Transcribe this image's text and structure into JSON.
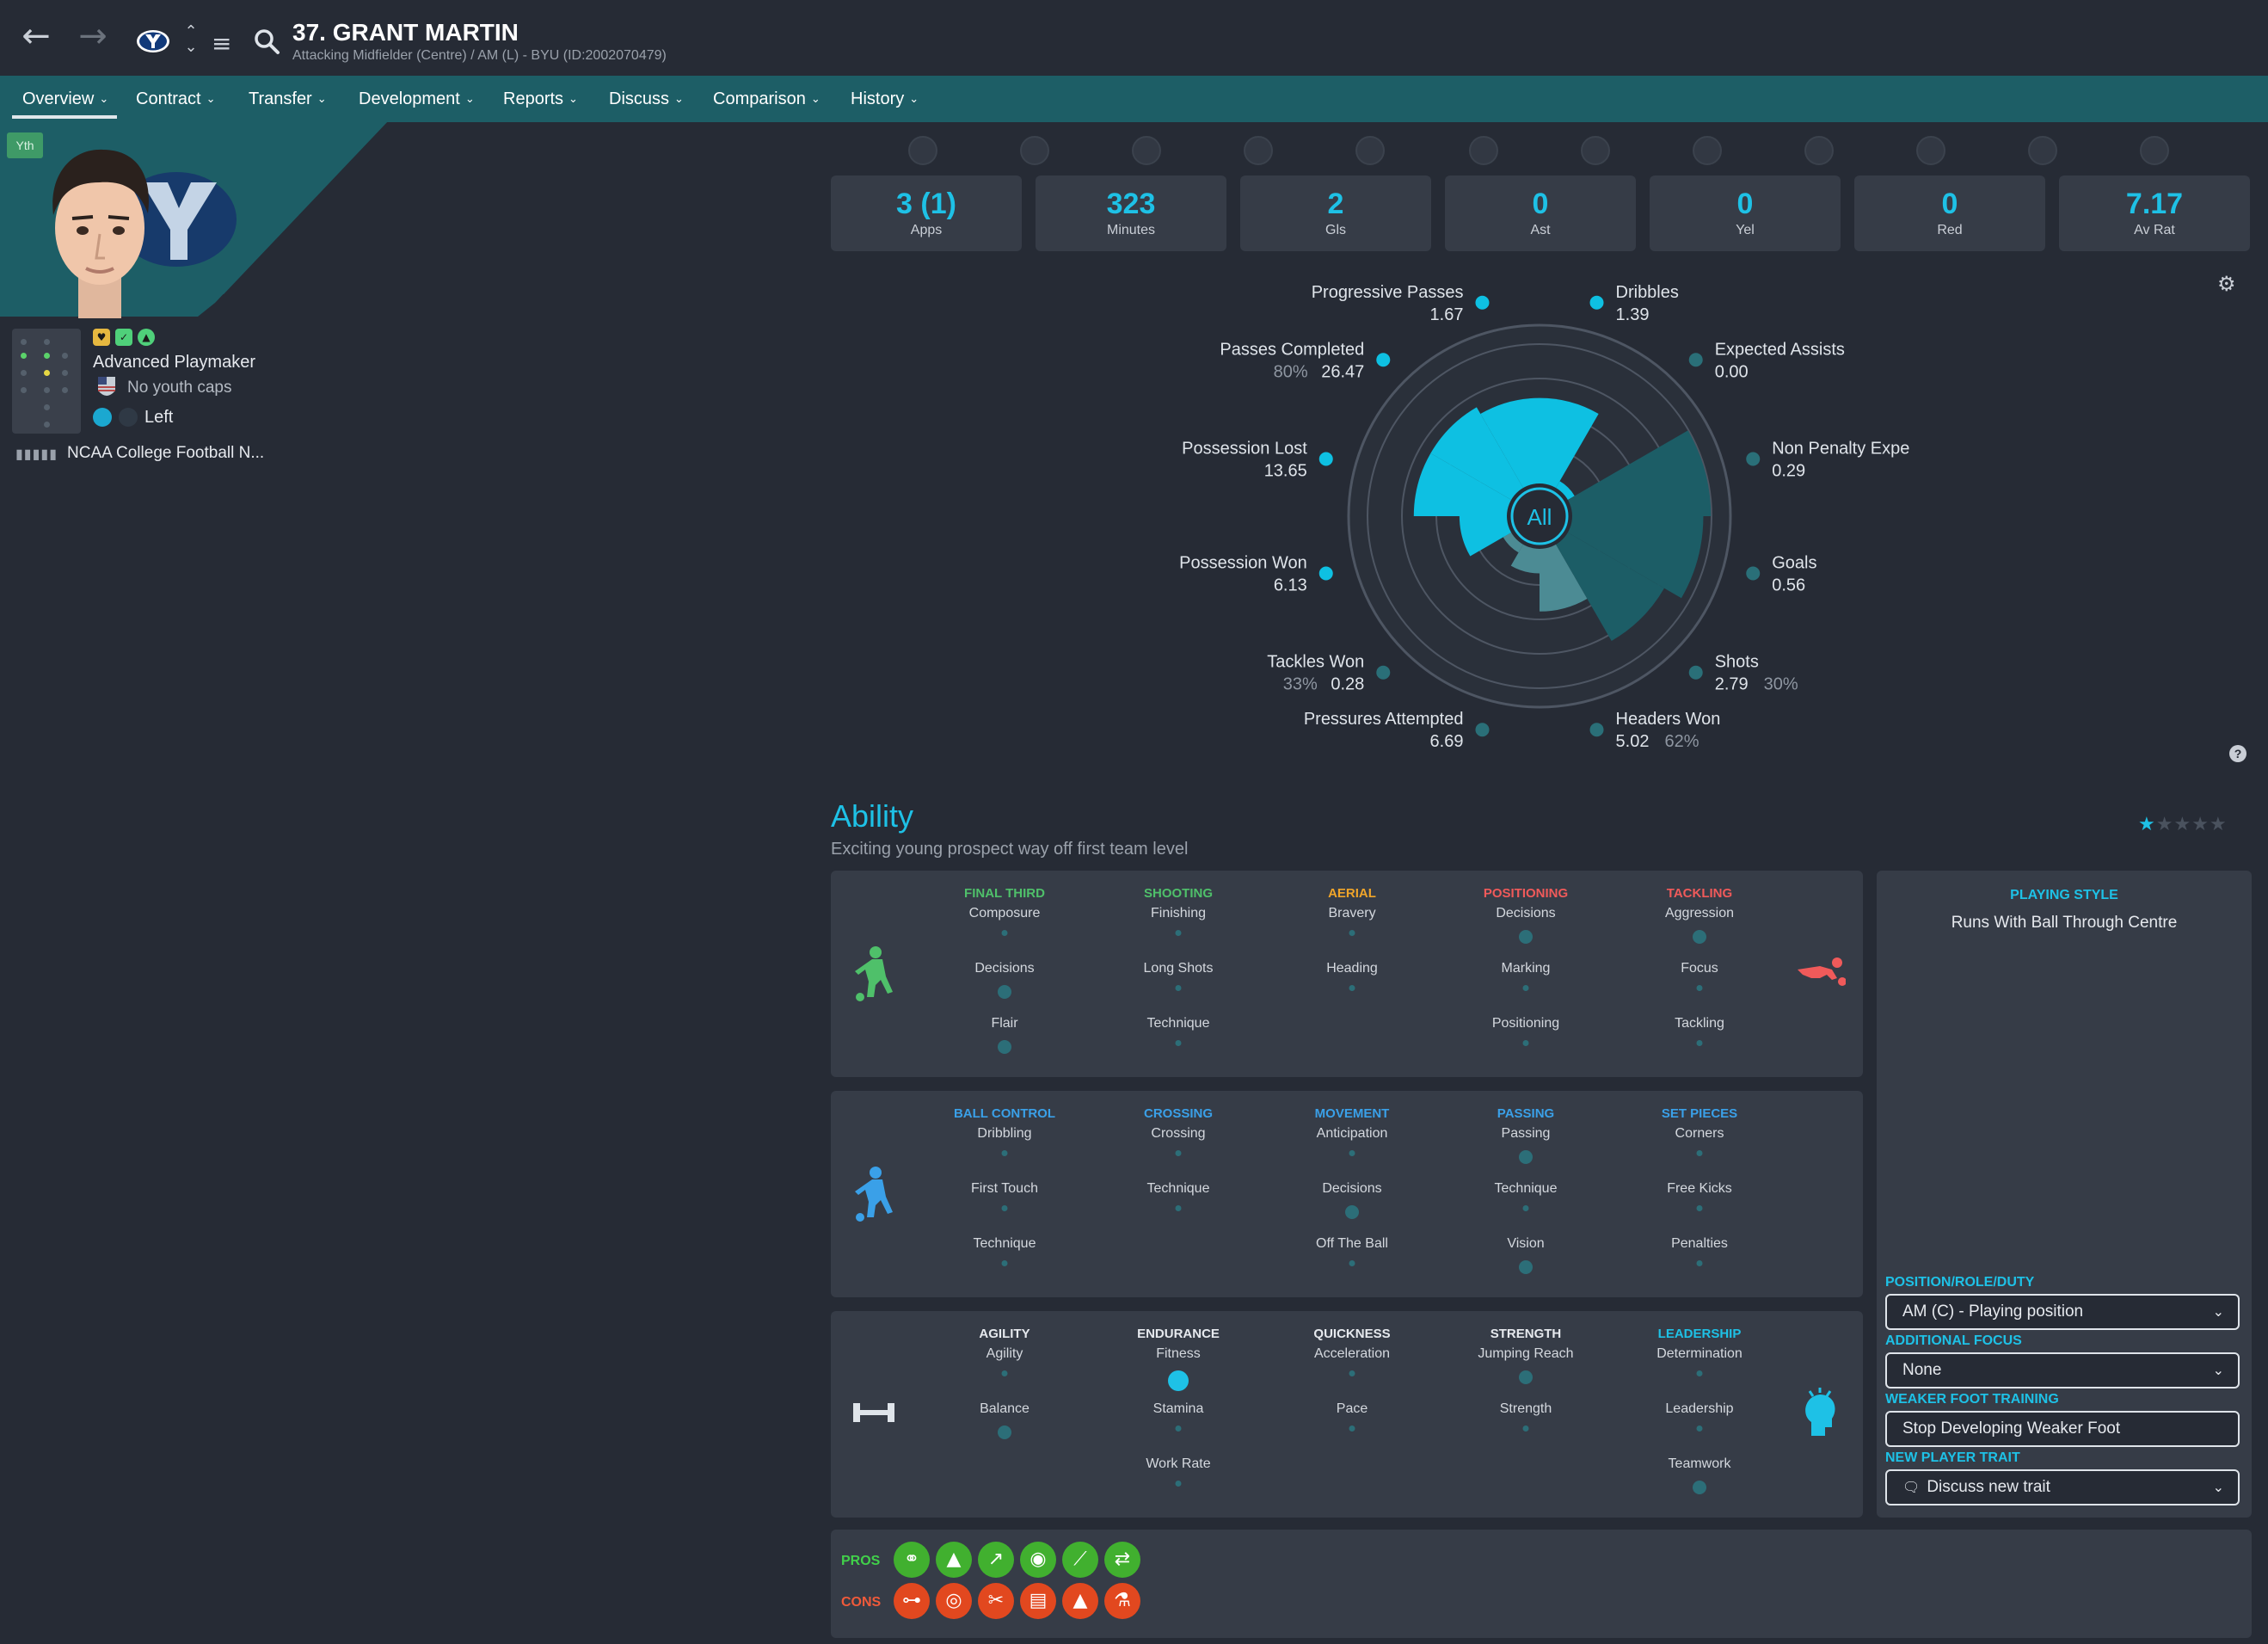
{
  "header": {
    "back_icon": "arrow-left-icon",
    "forward_icon": "arrow-right-icon",
    "player_name": "37. GRANT MARTIN",
    "player_subtitle": "Attacking Midfielder (Centre) / AM (L) - BYU (ID:2002070479)"
  },
  "tabs": [
    {
      "label": "Overview"
    },
    {
      "label": "Contract"
    },
    {
      "label": "Transfer"
    },
    {
      "label": "Development"
    },
    {
      "label": "Reports"
    },
    {
      "label": "Discuss"
    },
    {
      "label": "Comparison"
    },
    {
      "label": "History"
    }
  ],
  "profile": {
    "youth_badge": "Yth",
    "role": "Advanced Playmaker",
    "youth_caps": "No youth caps",
    "preferred_foot": "Left",
    "league": "NCAA College Football N..."
  },
  "stats": [
    {
      "value": "3 (1)",
      "label": "Apps"
    },
    {
      "value": "323",
      "label": "Minutes"
    },
    {
      "value": "2",
      "label": "Gls"
    },
    {
      "value": "0",
      "label": "Ast"
    },
    {
      "value": "0",
      "label": "Yel"
    },
    {
      "value": "0",
      "label": "Red"
    },
    {
      "value": "7.17",
      "label": "Av Rat"
    }
  ],
  "radar": {
    "center_label": "All",
    "metrics": [
      {
        "name": "Dribbles",
        "value": "1.39",
        "pct": ""
      },
      {
        "name": "Expected Assists",
        "value": "0.00",
        "pct": ""
      },
      {
        "name": "Non Penalty Expected Goals",
        "value": "0.29",
        "pct": ""
      },
      {
        "name": "Goals",
        "value": "0.56",
        "pct": ""
      },
      {
        "name": "Shots",
        "value": "2.79",
        "pct": "30%"
      },
      {
        "name": "Headers Won",
        "value": "5.02",
        "pct": "62%"
      },
      {
        "name": "Pressures Attempted",
        "value": "6.69",
        "pct": ""
      },
      {
        "name": "Tackles Won",
        "value": "0.28",
        "pct": "33%"
      },
      {
        "name": "Possession Won",
        "value": "6.13",
        "pct": ""
      },
      {
        "name": "Possession Lost",
        "value": "13.65",
        "pct": ""
      },
      {
        "name": "Passes Completed",
        "value": "26.47",
        "pct": "80%"
      },
      {
        "name": "Progressive Passes",
        "value": "1.67",
        "pct": ""
      }
    ],
    "wedge_levels": [
      0.55,
      0.04,
      0.9,
      0.85,
      0.72,
      0.4,
      0.15,
      0.05,
      0.3,
      0.6,
      0.6,
      0.55
    ]
  },
  "ability": {
    "title": "Ability",
    "subtitle": "Exciting young prospect way off first team level",
    "star_rating": 1,
    "star_max": 5
  },
  "attribute_panels": [
    {
      "icon": "player-shooting-icon",
      "icon_right": "tackling-player-icon",
      "groups": [
        {
          "title": "FINAL THIRD",
          "color": "#4fc06a",
          "attrs": [
            "Composure",
            "Decisions",
            "Flair"
          ],
          "levels": [
            1,
            2,
            2
          ]
        },
        {
          "title": "SHOOTING",
          "color": "#4fc06a",
          "attrs": [
            "Finishing",
            "Long Shots",
            "Technique"
          ],
          "levels": [
            1,
            1,
            1
          ]
        },
        {
          "title": "AERIAL",
          "color": "#f0a52a",
          "attrs": [
            "Bravery",
            "Heading"
          ],
          "levels": [
            1,
            1
          ]
        },
        {
          "title": "POSITIONING",
          "color": "#f05a5a",
          "attrs": [
            "Decisions",
            "Marking",
            "Positioning"
          ],
          "levels": [
            2,
            1,
            1
          ]
        },
        {
          "title": "TACKLING",
          "color": "#f05a5a",
          "attrs": [
            "Aggression",
            "Focus",
            "Tackling"
          ],
          "levels": [
            2,
            1,
            1
          ]
        }
      ]
    },
    {
      "icon": "player-dribbling-icon",
      "groups": [
        {
          "title": "BALL CONTROL",
          "color": "#3aa0e8",
          "attrs": [
            "Dribbling",
            "First Touch",
            "Technique"
          ],
          "levels": [
            1,
            1,
            1
          ]
        },
        {
          "title": "CROSSING",
          "color": "#3aa0e8",
          "attrs": [
            "Crossing",
            "Technique"
          ],
          "levels": [
            1,
            1
          ]
        },
        {
          "title": "MOVEMENT",
          "color": "#3aa0e8",
          "attrs": [
            "Anticipation",
            "Decisions",
            "Off The Ball"
          ],
          "levels": [
            1,
            2,
            1
          ]
        },
        {
          "title": "PASSING",
          "color": "#3aa0e8",
          "attrs": [
            "Passing",
            "Technique",
            "Vision"
          ],
          "levels": [
            2,
            1,
            2
          ]
        },
        {
          "title": "SET PIECES",
          "color": "#3aa0e8",
          "attrs": [
            "Corners",
            "Free Kicks",
            "Penalties"
          ],
          "levels": [
            1,
            1,
            1
          ]
        }
      ]
    },
    {
      "icon": "dumbbell-icon",
      "icon_right": "mental-head-icon",
      "groups": [
        {
          "title": "AGILITY",
          "color": "#e6e9ee",
          "attrs": [
            "Agility",
            "Balance"
          ],
          "levels": [
            1,
            2
          ]
        },
        {
          "title": "ENDURANCE",
          "color": "#e6e9ee",
          "attrs": [
            "Fitness",
            "Stamina",
            "Work Rate"
          ],
          "levels": [
            3,
            1,
            1
          ]
        },
        {
          "title": "QUICKNESS",
          "color": "#e6e9ee",
          "attrs": [
            "Acceleration",
            "Pace"
          ],
          "levels": [
            1,
            1
          ]
        },
        {
          "title": "STRENGTH",
          "color": "#e6e9ee",
          "attrs": [
            "Jumping Reach",
            "Strength"
          ],
          "levels": [
            2,
            1
          ]
        },
        {
          "title": "LEADERSHIP",
          "color": "#1ec1e6",
          "attrs": [
            "Determination",
            "Leadership",
            "Teamwork"
          ],
          "levels": [
            1,
            1,
            2
          ]
        }
      ]
    }
  ],
  "playing_style": {
    "heading": "PLAYING STYLE",
    "value": "Runs With Ball Through Centre"
  },
  "controls": [
    {
      "label": "POSITION/ROLE/DUTY",
      "value": "AM (C) - Playing position",
      "has_dropdown": true
    },
    {
      "label": "ADDITIONAL FOCUS",
      "value": "None",
      "has_dropdown": true
    },
    {
      "label": "WEAKER FOOT TRAINING",
      "value": "Stop Developing Weaker Foot",
      "has_dropdown": false
    },
    {
      "label": "NEW PLAYER TRAIT",
      "value": "Discuss new trait",
      "has_dropdown": true
    }
  ],
  "pros_cons": {
    "pros_label": "PROS",
    "cons_label": "CONS",
    "pros_color": "#41b02f",
    "cons_color": "#e2481f",
    "pros_icons": [
      "teamwork-rings-icon",
      "cones-drill-icon",
      "trend-up-icon",
      "brain-icon",
      "boot-icon",
      "arrows-swap-icon"
    ],
    "cons_icons": [
      "dumbbell-icon",
      "target-icon",
      "scissors-icon",
      "clipboard-icon",
      "cone-icon",
      "flask-icon"
    ]
  }
}
